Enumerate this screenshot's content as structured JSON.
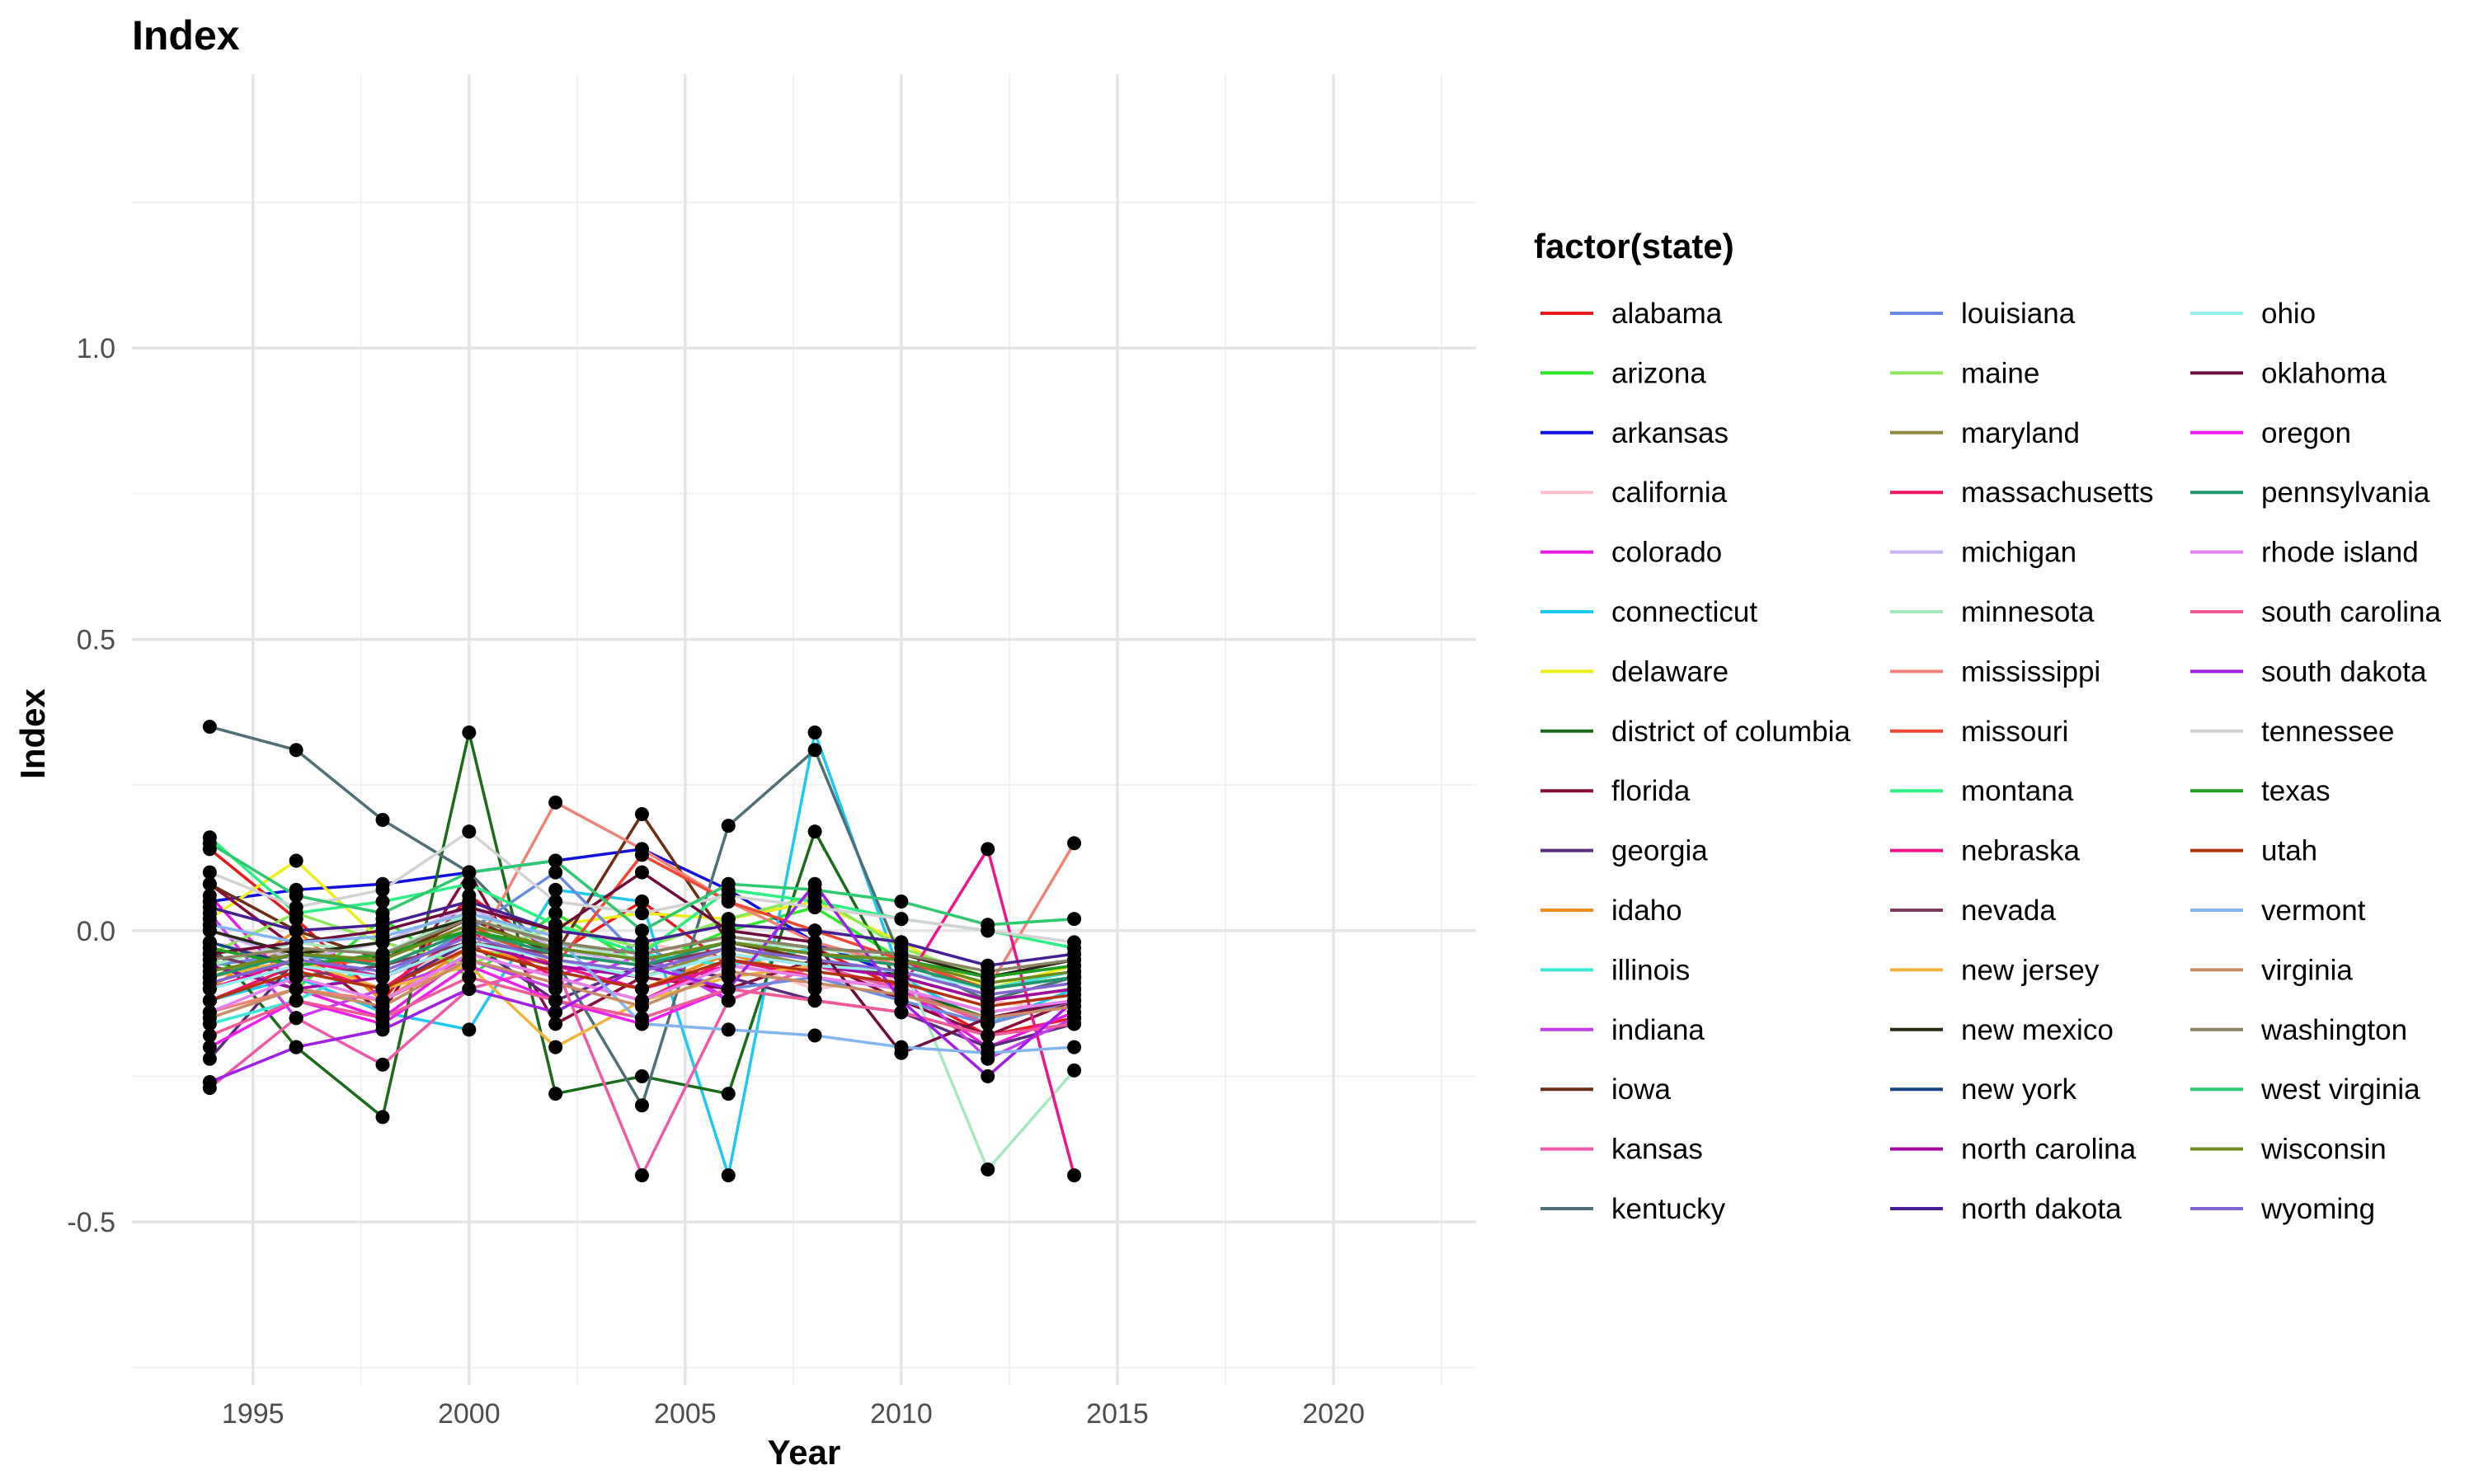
{
  "chart_data": {
    "type": "line",
    "title": "Index",
    "xlabel": "Year",
    "ylabel": "Index",
    "xlim": [
      1992.2,
      2023.3
    ],
    "ylim": [
      -0.78,
      1.47
    ],
    "xticks": [
      1995,
      2000,
      2005,
      2010,
      2015,
      2020
    ],
    "yticks": [
      -0.5,
      0.0,
      0.5,
      1.0
    ],
    "ytick_labels": [
      "-0.5",
      "0.0",
      "0.5",
      "1.0"
    ],
    "grid": true,
    "legend": {
      "title": "factor(state)",
      "placement": "right",
      "columns": 3
    },
    "x": [
      1994,
      1996,
      1998,
      2000,
      2002,
      2004,
      2006,
      2008,
      2010,
      2012,
      2014
    ],
    "series": [
      {
        "name": "alabama",
        "color": "#e8191c",
        "values": [
          0.14,
          0.02,
          -0.12,
          0.06,
          -0.04,
          0.05,
          -0.06,
          -0.03,
          -0.1,
          -0.18,
          -0.15
        ]
      },
      {
        "name": "arizona",
        "color": "#2ee82e",
        "values": [
          -0.05,
          -0.1,
          0.02,
          -0.08,
          0.03,
          -0.06,
          0.0,
          0.04,
          -0.05,
          -0.1,
          -0.08
        ]
      },
      {
        "name": "arkansas",
        "color": "#1010e0",
        "values": [
          0.05,
          0.07,
          0.08,
          0.1,
          0.12,
          0.14,
          0.07,
          -0.02,
          -0.08,
          -0.12,
          -0.1
        ]
      },
      {
        "name": "california",
        "color": "#ffc0cb",
        "values": [
          -0.02,
          -0.05,
          -0.08,
          -0.03,
          0.0,
          -0.02,
          -0.05,
          -0.1,
          -0.08,
          -0.12,
          -0.14
        ]
      },
      {
        "name": "colorado",
        "color": "#e81ce0",
        "values": [
          0.06,
          -0.1,
          -0.15,
          -0.04,
          -0.08,
          -0.02,
          -0.12,
          -0.06,
          -0.1,
          -0.2,
          -0.14
        ]
      },
      {
        "name": "connecticut",
        "color": "#1ec8f0",
        "values": [
          -0.12,
          -0.08,
          -0.14,
          -0.17,
          0.07,
          0.05,
          -0.42,
          0.34,
          -0.08,
          -0.16,
          -0.1
        ]
      },
      {
        "name": "delaware",
        "color": "#eeee1c",
        "values": [
          0.02,
          0.12,
          -0.02,
          -0.06,
          0.01,
          0.03,
          0.02,
          0.05,
          -0.02,
          -0.1,
          -0.06
        ]
      },
      {
        "name": "district of columbia",
        "color": "#1a6b1a",
        "values": [
          -0.02,
          -0.2,
          -0.32,
          0.34,
          -0.28,
          -0.25,
          -0.28,
          0.17,
          -0.1,
          -0.15,
          -0.12
        ]
      },
      {
        "name": "florida",
        "color": "#8b0a3c",
        "values": [
          0.08,
          -0.03,
          -0.14,
          0.1,
          -0.16,
          -0.08,
          -0.1,
          -0.05,
          -0.12,
          -0.18,
          -0.12
        ]
      },
      {
        "name": "georgia",
        "color": "#5a2d7a",
        "values": [
          -0.22,
          -0.05,
          -0.1,
          -0.02,
          -0.12,
          -0.06,
          -0.08,
          -0.12,
          -0.14,
          -0.2,
          -0.16
        ]
      },
      {
        "name": "idaho",
        "color": "#f08c1c",
        "values": [
          -0.1,
          0.0,
          -0.12,
          -0.03,
          -0.06,
          -0.1,
          -0.04,
          -0.08,
          -0.1,
          -0.16,
          -0.12
        ]
      },
      {
        "name": "illinois",
        "color": "#3ce8d8",
        "values": [
          -0.16,
          -0.12,
          -0.05,
          0.03,
          -0.02,
          -0.04,
          -0.06,
          -0.03,
          -0.05,
          -0.1,
          -0.07
        ]
      },
      {
        "name": "indiana",
        "color": "#c83cf0",
        "values": [
          0.03,
          -0.15,
          -0.1,
          -0.05,
          -0.1,
          -0.04,
          -0.12,
          -0.06,
          -0.08,
          -0.22,
          -0.15
        ]
      },
      {
        "name": "iowa",
        "color": "#6b2d14",
        "values": [
          0.08,
          0.0,
          -0.05,
          0.02,
          -0.04,
          0.2,
          -0.02,
          -0.05,
          -0.08,
          -0.12,
          -0.1
        ]
      },
      {
        "name": "kansas",
        "color": "#ee5aa8",
        "values": [
          -0.27,
          -0.15,
          -0.23,
          -0.1,
          -0.06,
          -0.42,
          -0.12,
          -0.06,
          -0.1,
          -0.16,
          -0.12
        ]
      },
      {
        "name": "kentucky",
        "color": "#4f6f76",
        "values": [
          0.35,
          0.31,
          0.19,
          0.1,
          -0.05,
          -0.3,
          0.18,
          0.31,
          -0.05,
          -0.12,
          -0.08
        ]
      },
      {
        "name": "louisiana",
        "color": "#6a8ce0",
        "values": [
          -0.06,
          -0.04,
          -0.08,
          0.0,
          0.1,
          -0.05,
          -0.1,
          -0.08,
          -0.12,
          -0.16,
          -0.12
        ]
      },
      {
        "name": "maine",
        "color": "#8ce85a",
        "values": [
          -0.04,
          0.03,
          -0.02,
          -0.06,
          0.01,
          -0.03,
          0.02,
          0.06,
          -0.03,
          -0.08,
          -0.05
        ]
      },
      {
        "name": "maryland",
        "color": "#8c8c3c",
        "values": [
          -0.08,
          -0.03,
          -0.06,
          0.0,
          -0.05,
          -0.08,
          -0.03,
          -0.06,
          -0.08,
          -0.12,
          -0.1
        ]
      },
      {
        "name": "massachusetts",
        "color": "#f01464",
        "values": [
          -0.12,
          -0.06,
          -0.1,
          0.0,
          -0.08,
          -0.12,
          -0.05,
          -0.08,
          -0.1,
          -0.14,
          -0.12
        ]
      },
      {
        "name": "michigan",
        "color": "#c8b4f0",
        "values": [
          0.0,
          -0.05,
          -0.02,
          0.04,
          -0.03,
          -0.06,
          -0.02,
          -0.04,
          -0.06,
          -0.1,
          -0.08
        ]
      },
      {
        "name": "minnesota",
        "color": "#a8e8c0",
        "values": [
          -0.06,
          -0.02,
          -0.04,
          0.03,
          -0.02,
          -0.05,
          -0.02,
          -0.03,
          -0.05,
          -0.41,
          -0.24
        ]
      },
      {
        "name": "mississippi",
        "color": "#f0827a",
        "values": [
          -0.14,
          -0.1,
          -0.12,
          -0.05,
          0.22,
          0.14,
          0.05,
          -0.02,
          -0.06,
          -0.1,
          0.15
        ]
      },
      {
        "name": "missouri",
        "color": "#f04632",
        "values": [
          -0.03,
          -0.06,
          -0.05,
          0.01,
          -0.06,
          0.13,
          0.05,
          0.0,
          -0.05,
          -0.1,
          -0.08
        ]
      },
      {
        "name": "montana",
        "color": "#2ef082",
        "values": [
          0.16,
          0.03,
          0.05,
          0.08,
          0.01,
          -0.04,
          0.07,
          0.05,
          0.02,
          0.0,
          -0.03
        ]
      },
      {
        "name": "nebraska",
        "color": "#f0148c",
        "values": [
          -0.1,
          -0.05,
          -0.08,
          -0.02,
          -0.06,
          -0.1,
          -0.06,
          -0.08,
          -0.1,
          0.14,
          -0.42
        ]
      },
      {
        "name": "nevada",
        "color": "#7a3c5a",
        "values": [
          -0.04,
          -0.08,
          -0.06,
          -0.02,
          -0.04,
          -0.06,
          -0.03,
          -0.05,
          -0.07,
          -0.1,
          -0.08
        ]
      },
      {
        "name": "new jersey",
        "color": "#f0b43c",
        "values": [
          -0.08,
          -0.05,
          -0.1,
          -0.06,
          -0.2,
          -0.12,
          -0.08,
          -0.06,
          -0.08,
          -0.12,
          -0.1
        ]
      },
      {
        "name": "new mexico",
        "color": "#282814",
        "values": [
          0.0,
          -0.04,
          -0.02,
          0.02,
          -0.02,
          -0.04,
          -0.01,
          -0.03,
          -0.04,
          -0.08,
          -0.05
        ]
      },
      {
        "name": "new york",
        "color": "#144682",
        "values": [
          -0.02,
          -0.06,
          -0.04,
          0.0,
          -0.03,
          -0.05,
          -0.02,
          -0.04,
          -0.05,
          -0.08,
          -0.06
        ]
      },
      {
        "name": "north carolina",
        "color": "#a00aa0",
        "values": [
          -0.06,
          -0.1,
          -0.08,
          -0.02,
          -0.06,
          -0.08,
          -0.04,
          -0.06,
          -0.08,
          -0.12,
          -0.1
        ]
      },
      {
        "name": "north dakota",
        "color": "#461e96",
        "values": [
          0.04,
          0.0,
          0.01,
          0.05,
          0.0,
          -0.02,
          0.01,
          0.0,
          -0.02,
          -0.06,
          -0.04
        ]
      },
      {
        "name": "ohio",
        "color": "#96eeee",
        "values": [
          -0.1,
          -0.06,
          -0.08,
          -0.02,
          -0.05,
          -0.08,
          -0.04,
          -0.06,
          -0.07,
          -0.1,
          -0.08
        ]
      },
      {
        "name": "oklahoma",
        "color": "#6e0a3c",
        "values": [
          -0.04,
          -0.02,
          0.0,
          0.04,
          0.0,
          0.1,
          0.0,
          -0.02,
          -0.21,
          -0.15,
          -0.12
        ]
      },
      {
        "name": "oregon",
        "color": "#f01ef0",
        "values": [
          -0.2,
          -0.12,
          -0.16,
          -0.06,
          -0.12,
          -0.16,
          -0.1,
          -0.12,
          -0.14,
          -0.18,
          -0.16
        ]
      },
      {
        "name": "pennsylvania",
        "color": "#1e966e",
        "values": [
          -0.08,
          -0.04,
          -0.06,
          0.0,
          -0.04,
          -0.06,
          -0.02,
          -0.04,
          -0.06,
          -0.1,
          -0.08
        ]
      },
      {
        "name": "rhode island",
        "color": "#e682f0",
        "values": [
          -0.14,
          -0.08,
          -0.12,
          -0.04,
          -0.08,
          -0.12,
          -0.06,
          -0.08,
          -0.1,
          -0.14,
          -0.12
        ]
      },
      {
        "name": "south carolina",
        "color": "#f05a96",
        "values": [
          -0.18,
          -0.12,
          -0.15,
          -0.08,
          -0.12,
          -0.15,
          -0.1,
          -0.12,
          -0.14,
          -0.18,
          -0.16
        ]
      },
      {
        "name": "south dakota",
        "color": "#a01ee6",
        "values": [
          -0.26,
          -0.2,
          -0.17,
          -0.1,
          -0.14,
          -0.06,
          -0.1,
          0.08,
          -0.12,
          -0.25,
          -0.12
        ]
      },
      {
        "name": "tennessee",
        "color": "#d2d2d2",
        "values": [
          0.1,
          0.04,
          0.07,
          0.17,
          0.05,
          0.03,
          0.06,
          0.04,
          0.02,
          0.0,
          -0.02
        ]
      },
      {
        "name": "texas",
        "color": "#1ea01e",
        "values": [
          -0.03,
          -0.06,
          -0.04,
          0.0,
          -0.03,
          -0.05,
          -0.02,
          -0.04,
          -0.05,
          -0.08,
          -0.06
        ]
      },
      {
        "name": "utah",
        "color": "#b4320a",
        "values": [
          -0.12,
          -0.07,
          -0.1,
          -0.03,
          -0.07,
          -0.1,
          -0.05,
          -0.07,
          -0.09,
          -0.13,
          -0.11
        ]
      },
      {
        "name": "vermont",
        "color": "#82b4f0",
        "values": [
          0.01,
          -0.02,
          -0.01,
          0.03,
          -0.01,
          -0.16,
          -0.17,
          -0.18,
          -0.2,
          -0.21,
          -0.2
        ]
      },
      {
        "name": "virginia",
        "color": "#c88c64",
        "values": [
          -0.15,
          -0.1,
          -0.13,
          -0.05,
          -0.09,
          -0.13,
          -0.07,
          -0.09,
          -0.11,
          -0.15,
          -0.13
        ]
      },
      {
        "name": "washington",
        "color": "#8c8264",
        "values": [
          -0.05,
          -0.03,
          -0.04,
          0.02,
          -0.02,
          -0.04,
          -0.01,
          -0.03,
          -0.04,
          -0.07,
          -0.05
        ]
      },
      {
        "name": "west virginia",
        "color": "#2ec86e",
        "values": [
          0.15,
          0.06,
          0.03,
          0.1,
          0.12,
          0.0,
          0.08,
          0.07,
          0.05,
          0.01,
          0.02
        ]
      },
      {
        "name": "wisconsin",
        "color": "#6e8c1e",
        "values": [
          -0.07,
          -0.04,
          -0.05,
          0.01,
          -0.03,
          -0.05,
          -0.02,
          -0.04,
          -0.05,
          -0.09,
          -0.07
        ]
      },
      {
        "name": "wyoming",
        "color": "#8264d2",
        "values": [
          -0.09,
          -0.05,
          -0.07,
          -0.01,
          -0.05,
          -0.07,
          -0.03,
          -0.05,
          -0.07,
          -0.11,
          -0.09
        ]
      }
    ]
  }
}
